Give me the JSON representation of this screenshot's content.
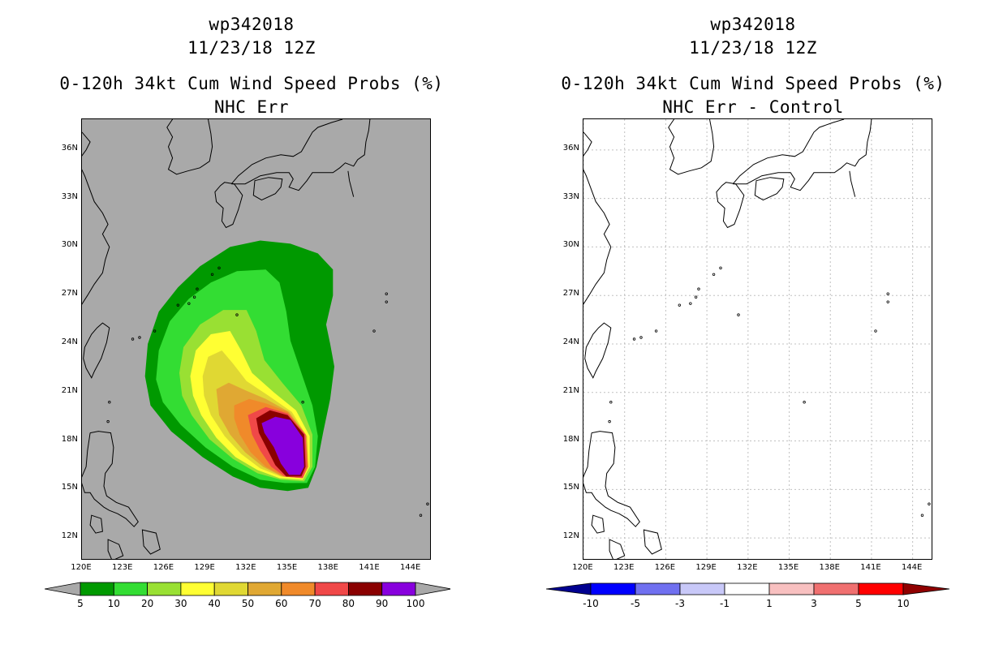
{
  "left_panel": {
    "title_lines": [
      "wp342018",
      "11/23/18 12Z",
      "0-120h 34kt Cum Wind Speed Probs (%)",
      "NHC Err"
    ],
    "background_color": "#a9a9a9"
  },
  "right_panel": {
    "title_lines": [
      "wp342018",
      "11/23/18 12Z",
      "0-120h 34kt Cum Wind Speed Probs (%)",
      "NHC Err - Control"
    ],
    "background_color": "#ffffff"
  },
  "axes": {
    "lon_range": [
      120,
      145.5
    ],
    "lat_range": [
      10.6,
      37.9
    ],
    "lon_ticks": [
      "120E",
      "123E",
      "126E",
      "129E",
      "132E",
      "135E",
      "138E",
      "141E",
      "144E"
    ],
    "lon_values": [
      120,
      123,
      126,
      129,
      132,
      135,
      138,
      141,
      144
    ],
    "lat_ticks": [
      "12N",
      "15N",
      "18N",
      "21N",
      "24N",
      "27N",
      "30N",
      "33N",
      "36N"
    ],
    "lat_values": [
      12,
      15,
      18,
      21,
      24,
      27,
      30,
      33,
      36
    ]
  },
  "chart_data": [
    {
      "type": "heatmap",
      "title": "0-120h 34kt Cum Wind Speed Probs (%) NHC Err",
      "storm": "wp342018",
      "date": "11/23/18 12Z",
      "legend": {
        "levels": [
          "5",
          "10",
          "20",
          "30",
          "40",
          "50",
          "60",
          "70",
          "80",
          "90",
          "100"
        ],
        "colors": [
          "#009900",
          "#33dd33",
          "#99e033",
          "#ffff33",
          "#e0d833",
          "#e0a833",
          "#f08a2a",
          "#f04848",
          "#8a0000",
          "#8800dd"
        ],
        "arrow_color": "#a9a9a9"
      },
      "contours": [
        {
          "level": 5,
          "color": "#009900",
          "points": [
            [
              124.6,
              22
            ],
            [
              124.8,
              24
            ],
            [
              125.6,
              26
            ],
            [
              127,
              27.5
            ],
            [
              128.6,
              28.8
            ],
            [
              130.8,
              30
            ],
            [
              133,
              30.4
            ],
            [
              135.2,
              30.2
            ],
            [
              137.2,
              29.6
            ],
            [
              138.3,
              28.6
            ],
            [
              138.3,
              27
            ],
            [
              137.8,
              25.2
            ],
            [
              138.1,
              24
            ],
            [
              138.4,
              22.6
            ],
            [
              138.1,
              20.6
            ],
            [
              137.6,
              18.6
            ],
            [
              137.1,
              16.4
            ],
            [
              136.5,
              15.1
            ],
            [
              135,
              14.9
            ],
            [
              133,
              15.1
            ],
            [
              131,
              15.8
            ],
            [
              128.8,
              17
            ],
            [
              126.5,
              18.6
            ],
            [
              125,
              20.2
            ]
          ]
        },
        {
          "level": 10,
          "color": "#33dd33",
          "points": [
            [
              125.4,
              21.8
            ],
            [
              125.6,
              23.6
            ],
            [
              126.4,
              25.4
            ],
            [
              127.8,
              26.8
            ],
            [
              129.4,
              27.8
            ],
            [
              131.3,
              28.5
            ],
            [
              133.4,
              28.6
            ],
            [
              134.4,
              27.8
            ],
            [
              134.9,
              26
            ],
            [
              135.2,
              24.2
            ],
            [
              136,
              22.2
            ],
            [
              136.8,
              20.2
            ],
            [
              137.2,
              18.3
            ],
            [
              137,
              16.4
            ],
            [
              136.4,
              15.4
            ],
            [
              134.8,
              15.4
            ],
            [
              133,
              15.6
            ],
            [
              131,
              16.4
            ],
            [
              129,
              17.6
            ],
            [
              127.2,
              19
            ],
            [
              125.9,
              20.4
            ]
          ]
        },
        {
          "level": 20,
          "color": "#99e033",
          "points": [
            [
              127.1,
              22.2
            ],
            [
              127.4,
              23.8
            ],
            [
              128.6,
              25.2
            ],
            [
              130.3,
              26.1
            ],
            [
              132,
              26.1
            ],
            [
              132.7,
              24.8
            ],
            [
              133.3,
              23
            ],
            [
              134.6,
              21.6
            ],
            [
              136,
              20.2
            ],
            [
              136.8,
              18.4
            ],
            [
              136.8,
              16.4
            ],
            [
              136.2,
              15.5
            ],
            [
              134.5,
              15.6
            ],
            [
              132.8,
              16
            ],
            [
              131,
              16.9
            ],
            [
              129.3,
              18.1
            ],
            [
              128,
              19.6
            ],
            [
              127.3,
              20.8
            ]
          ]
        },
        {
          "level": 30,
          "color": "#ffff33",
          "points": [
            [
              127.9,
              22
            ],
            [
              128.3,
              23.6
            ],
            [
              129.4,
              24.6
            ],
            [
              130.8,
              24.8
            ],
            [
              131.6,
              23.6
            ],
            [
              132.4,
              22.2
            ],
            [
              134,
              21
            ],
            [
              135.6,
              19.9
            ],
            [
              136.6,
              18.3
            ],
            [
              136.6,
              16.4
            ],
            [
              136.1,
              15.6
            ],
            [
              134.4,
              15.7
            ],
            [
              132.8,
              16.2
            ],
            [
              131.2,
              17
            ],
            [
              129.8,
              18.2
            ],
            [
              128.7,
              19.6
            ],
            [
              128.1,
              20.8
            ]
          ]
        },
        {
          "level": 40,
          "color": "#e0d833",
          "points": [
            [
              128.8,
              22
            ],
            [
              129.2,
              23.2
            ],
            [
              130.2,
              23.6
            ],
            [
              131,
              22.8
            ],
            [
              132,
              21.7
            ],
            [
              133.6,
              20.8
            ],
            [
              135.3,
              19.8
            ],
            [
              136.4,
              18.3
            ],
            [
              136.5,
              16.4
            ],
            [
              136.1,
              15.7
            ],
            [
              134.5,
              15.8
            ],
            [
              133,
              16.3
            ],
            [
              131.6,
              17.2
            ],
            [
              130.4,
              18.3
            ],
            [
              129.4,
              19.6
            ],
            [
              128.9,
              20.8
            ]
          ]
        },
        {
          "level": 50,
          "color": "#e0a833",
          "points": [
            [
              129.8,
              21.2
            ],
            [
              130.7,
              21.6
            ],
            [
              132,
              21.1
            ],
            [
              133.4,
              20.6
            ],
            [
              135.1,
              19.8
            ],
            [
              136.4,
              18.3
            ],
            [
              136.5,
              16.4
            ],
            [
              136.1,
              15.7
            ],
            [
              134.6,
              15.8
            ],
            [
              133.2,
              16.4
            ],
            [
              131.9,
              17.3
            ],
            [
              130.8,
              18.4
            ],
            [
              130,
              19.6
            ]
          ]
        },
        {
          "level": 60,
          "color": "#f08a2a",
          "points": [
            [
              131.1,
              20.2
            ],
            [
              132.2,
              20.6
            ],
            [
              133.5,
              20.3
            ],
            [
              135,
              19.8
            ],
            [
              136.3,
              18.4
            ],
            [
              136.5,
              16.4
            ],
            [
              136.1,
              15.7
            ],
            [
              134.7,
              15.8
            ],
            [
              133.4,
              16.4
            ],
            [
              132.3,
              17.3
            ],
            [
              131.5,
              18.4
            ],
            [
              131.1,
              19.4
            ]
          ]
        },
        {
          "level": 70,
          "color": "#f04848",
          "points": [
            [
              132.1,
              19.6
            ],
            [
              133.4,
              20.1
            ],
            [
              135,
              19.7
            ],
            [
              136.3,
              18.4
            ],
            [
              136.4,
              16.4
            ],
            [
              136.1,
              15.7
            ],
            [
              134.8,
              15.8
            ],
            [
              133.8,
              16.4
            ],
            [
              133,
              17.4
            ],
            [
              132.4,
              18.4
            ]
          ]
        },
        {
          "level": 80,
          "color": "#8a0000",
          "points": [
            [
              132.7,
              19.4
            ],
            [
              133.7,
              19.9
            ],
            [
              135,
              19.6
            ],
            [
              136.2,
              18.4
            ],
            [
              136.3,
              16.4
            ],
            [
              136,
              15.8
            ],
            [
              134.9,
              15.8
            ],
            [
              134.1,
              16.5
            ],
            [
              133.5,
              17.5
            ],
            [
              132.9,
              18.5
            ]
          ]
        },
        {
          "level": 90,
          "color": "#8800dd",
          "points": [
            [
              133.1,
              19.1
            ],
            [
              134.1,
              19.5
            ],
            [
              135.2,
              19.3
            ],
            [
              136.1,
              18.2
            ],
            [
              136.2,
              16.4
            ],
            [
              135.9,
              15.9
            ],
            [
              135.1,
              15.9
            ],
            [
              134.5,
              16.6
            ],
            [
              134,
              17.6
            ],
            [
              133.3,
              18.5
            ]
          ]
        }
      ]
    },
    {
      "type": "heatmap",
      "title": "0-120h 34kt Cum Wind Speed Probs (%) NHC Err - Control",
      "storm": "wp342018",
      "date": "11/23/18 12Z",
      "legend": {
        "levels": [
          "-10",
          "-5",
          "-3",
          "-1",
          "1",
          "3",
          "5",
          "10"
        ],
        "segment_colors": [
          "#0000ff",
          "#7070f0",
          "#c8c8f8",
          "#ffffff",
          "#f8c0c0",
          "#f07070",
          "#ff0000"
        ],
        "left_arrow_color": "#000090",
        "right_arrow_color": "#900000"
      },
      "contours": []
    }
  ]
}
